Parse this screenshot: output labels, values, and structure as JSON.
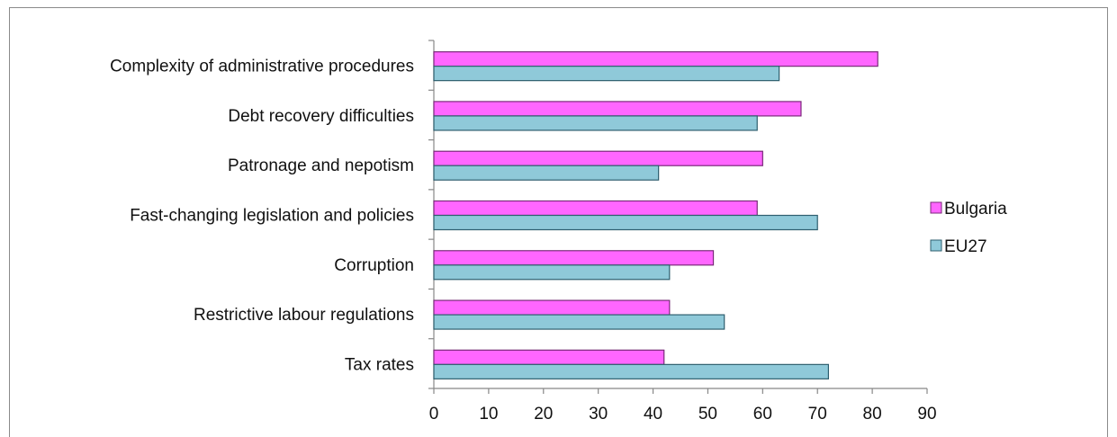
{
  "chart_data": {
    "type": "bar",
    "orientation": "horizontal",
    "categories": [
      "Complexity of administrative procedures",
      "Debt recovery difficulties",
      "Patronage and nepotism",
      "Fast-changing legislation and policies",
      "Corruption",
      "Restrictive labour regulations",
      "Tax rates"
    ],
    "series": [
      {
        "name": "Bulgaria",
        "color": "#ff66ff",
        "values": [
          81,
          67,
          60,
          59,
          51,
          43,
          42
        ]
      },
      {
        "name": "EU27",
        "color": "#8fc9d9",
        "values": [
          63,
          59,
          41,
          70,
          43,
          53,
          72
        ]
      }
    ],
    "xlim": [
      0,
      90
    ],
    "xticks": [
      "0",
      "10",
      "20",
      "30",
      "40",
      "50",
      "60",
      "70",
      "80",
      "90"
    ],
    "title": "",
    "xlabel": "",
    "ylabel": "",
    "grid": false,
    "legend_position": "right",
    "bar_edge_color": "#7a2a7a"
  }
}
